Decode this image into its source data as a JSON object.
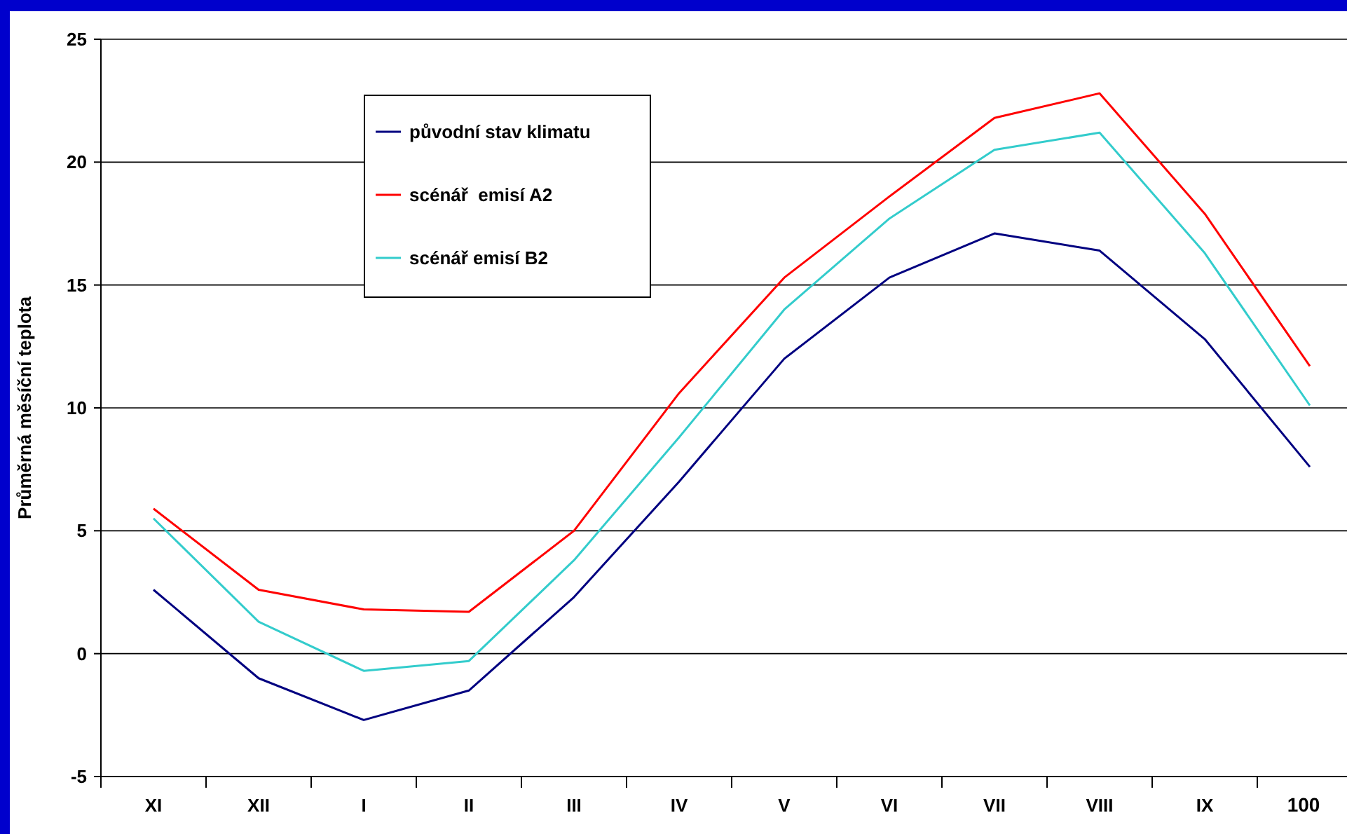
{
  "chart_data": {
    "type": "line",
    "ylabel": "Průměrná měsíční teplota",
    "categories": [
      "XI",
      "XII",
      "I",
      "II",
      "III",
      "IV",
      "V",
      "VI",
      "VII",
      "VIII",
      "IX",
      null
    ],
    "series": [
      {
        "name": "původní stav klimatu",
        "color": "#000080",
        "values": [
          2.6,
          -1.0,
          -2.7,
          -1.5,
          2.3,
          7.0,
          12.0,
          15.3,
          17.1,
          16.4,
          12.8,
          7.6
        ]
      },
      {
        "name": "scénář  emisí A2",
        "color": "#ff0000",
        "values": [
          5.9,
          2.6,
          1.8,
          1.7,
          5.0,
          10.6,
          15.3,
          18.6,
          21.8,
          22.8,
          17.9,
          11.7
        ]
      },
      {
        "name": "scénář emisí B2",
        "color": "#33cccc",
        "values": [
          5.5,
          1.3,
          -0.7,
          -0.3,
          3.8,
          8.8,
          14.0,
          17.7,
          20.5,
          21.2,
          16.3,
          10.1
        ]
      }
    ],
    "ylim": [
      -5,
      25
    ],
    "yticks": [
      -5,
      0,
      5,
      10,
      15,
      20,
      25
    ],
    "grid": "y",
    "legend": "top left",
    "annotations": [
      "100"
    ]
  }
}
